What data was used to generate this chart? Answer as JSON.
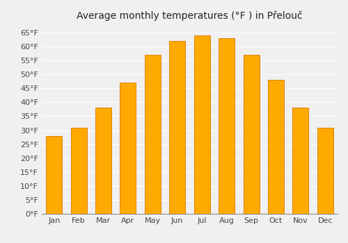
{
  "title": "Average monthly temperatures (°F ) in Přelouč",
  "months": [
    "Jan",
    "Feb",
    "Mar",
    "Apr",
    "May",
    "Jun",
    "Jul",
    "Aug",
    "Sep",
    "Oct",
    "Nov",
    "Dec"
  ],
  "values": [
    28,
    31,
    38,
    47,
    57,
    62,
    64,
    63,
    57,
    48,
    38,
    31
  ],
  "ylim": [
    0,
    68
  ],
  "yticks": [
    0,
    5,
    10,
    15,
    20,
    25,
    30,
    35,
    40,
    45,
    50,
    55,
    60,
    65
  ],
  "ytick_labels": [
    "0°F",
    "5°F",
    "10°F",
    "15°F",
    "20°F",
    "25°F",
    "30°F",
    "35°F",
    "40°F",
    "45°F",
    "50°F",
    "55°F",
    "60°F",
    "65°F"
  ],
  "bar_color_main": "#FFAA00",
  "bar_color_edge": "#E08000",
  "background_color": "#f0f0f0",
  "plot_bg_color": "#f0f0f0",
  "grid_color": "#ffffff",
  "title_fontsize": 10,
  "tick_fontsize": 8,
  "bar_width": 0.65
}
